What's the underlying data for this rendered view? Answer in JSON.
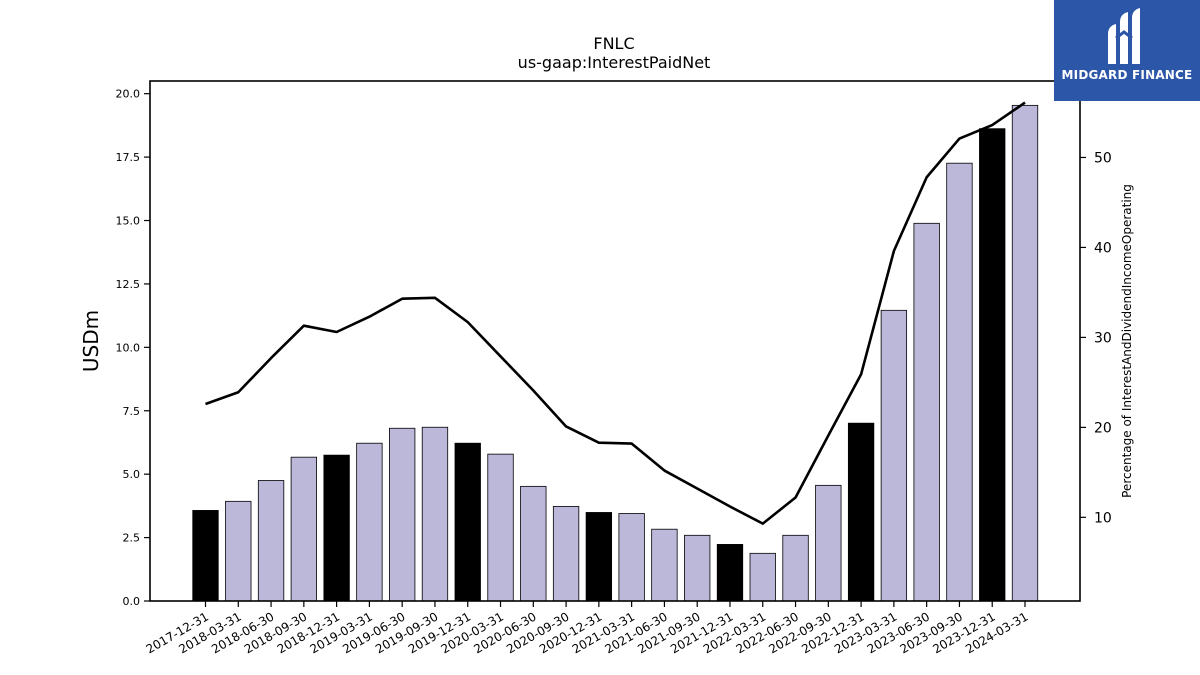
{
  "chart_data": {
    "type": "bar",
    "title": "FNLC",
    "subtitle": "us-gaap:InterestPaidNet",
    "ylabel": "USDm",
    "y2label": "Percentage of InterestAndDividendIncomeOperating",
    "ylim": [
      0,
      20.5
    ],
    "y2lim": [
      0.7,
      58.5
    ],
    "yticks": [
      "0.0",
      "2.5",
      "5.0",
      "7.5",
      "10.0",
      "12.5",
      "15.0",
      "17.5",
      "20.0"
    ],
    "y2ticks": [
      "10",
      "20",
      "30",
      "40",
      "50"
    ],
    "grid": false,
    "categories": [
      "2017-12-31",
      "2018-03-31",
      "2018-06-30",
      "2018-09-30",
      "2018-12-31",
      "2019-03-31",
      "2019-06-30",
      "2019-09-30",
      "2019-12-31",
      "2020-03-31",
      "2020-06-30",
      "2020-09-30",
      "2020-12-31",
      "2021-03-31",
      "2021-06-30",
      "2021-09-30",
      "2021-12-31",
      "2022-03-31",
      "2022-06-30",
      "2022-09-30",
      "2022-12-31",
      "2023-03-31",
      "2023-06-30",
      "2023-09-30",
      "2023-12-31",
      "2024-03-31"
    ],
    "values": [
      3.57,
      3.93,
      4.75,
      5.67,
      5.75,
      6.22,
      6.81,
      6.85,
      6.22,
      5.79,
      4.52,
      3.73,
      3.49,
      3.45,
      2.83,
      2.59,
      2.23,
      1.88,
      2.59,
      4.56,
      7.01,
      11.46,
      14.89,
      17.26,
      18.62,
      19.54
    ],
    "bar_colors": [
      "#000000",
      "#bcb8da",
      "#bcb8da",
      "#bcb8da",
      "#000000",
      "#bcb8da",
      "#bcb8da",
      "#bcb8da",
      "#000000",
      "#bcb8da",
      "#bcb8da",
      "#bcb8da",
      "#000000",
      "#bcb8da",
      "#bcb8da",
      "#bcb8da",
      "#000000",
      "#bcb8da",
      "#bcb8da",
      "#bcb8da",
      "#000000",
      "#bcb8da",
      "#bcb8da",
      "#bcb8da",
      "#000000",
      "#bcb8da"
    ],
    "line_values": [
      22.6,
      23.9,
      27.7,
      31.3,
      30.6,
      32.3,
      34.3,
      34.4,
      31.7,
      27.9,
      24.1,
      20.1,
      18.3,
      18.2,
      15.2,
      13.2,
      11.2,
      9.3,
      12.2,
      19.1,
      25.9,
      39.6,
      47.8,
      52.1,
      53.6,
      56.1
    ],
    "line_color": "#000000"
  },
  "branding": {
    "logo_text": "MIDGARD FINANCE",
    "logo_bg": "#2c57a8"
  }
}
